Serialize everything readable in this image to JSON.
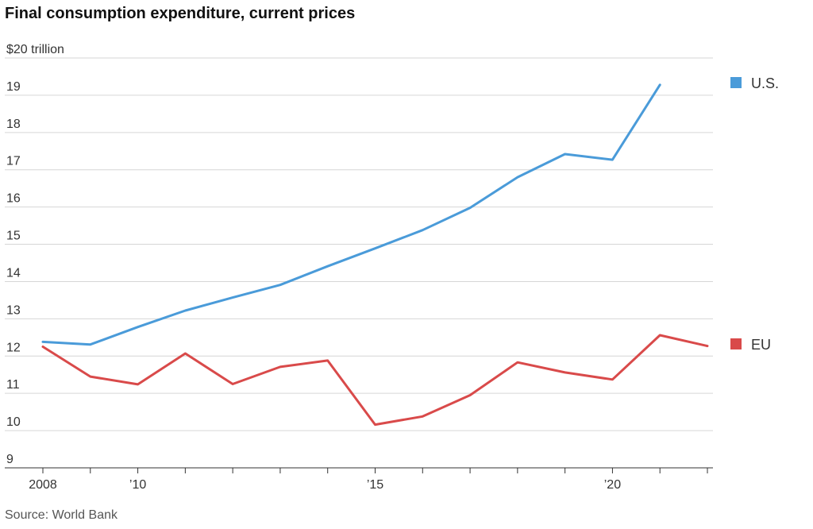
{
  "chart_data": {
    "type": "line",
    "title": "Final consumption expenditure, current prices",
    "source": "Source: World Bank",
    "ylabel": "",
    "xlabel": "",
    "ylim": [
      9,
      20
    ],
    "xlim": [
      2008,
      2022
    ],
    "y_ticks": [
      {
        "value": 20,
        "label": "$20 trillion"
      },
      {
        "value": 19,
        "label": "19"
      },
      {
        "value": 18,
        "label": "18"
      },
      {
        "value": 17,
        "label": "17"
      },
      {
        "value": 16,
        "label": "16"
      },
      {
        "value": 15,
        "label": "15"
      },
      {
        "value": 14,
        "label": "14"
      },
      {
        "value": 13,
        "label": "13"
      },
      {
        "value": 12,
        "label": "12"
      },
      {
        "value": 11,
        "label": "11"
      },
      {
        "value": 10,
        "label": "10"
      },
      {
        "value": 9,
        "label": "9"
      }
    ],
    "x_ticks": [
      {
        "value": 2008,
        "label": "2008"
      },
      {
        "value": 2009,
        "label": ""
      },
      {
        "value": 2010,
        "label": "’10"
      },
      {
        "value": 2011,
        "label": ""
      },
      {
        "value": 2012,
        "label": ""
      },
      {
        "value": 2013,
        "label": ""
      },
      {
        "value": 2014,
        "label": ""
      },
      {
        "value": 2015,
        "label": "’15"
      },
      {
        "value": 2016,
        "label": ""
      },
      {
        "value": 2017,
        "label": ""
      },
      {
        "value": 2018,
        "label": ""
      },
      {
        "value": 2019,
        "label": ""
      },
      {
        "value": 2020,
        "label": "’20"
      },
      {
        "value": 2021,
        "label": ""
      },
      {
        "value": 2022,
        "label": ""
      }
    ],
    "grid": true,
    "legend": "right",
    "series": [
      {
        "name": "U.S.",
        "color": "#4a9bd9",
        "x": [
          2008,
          2009,
          2010,
          2011,
          2012,
          2013,
          2014,
          2015,
          2016,
          2017,
          2018,
          2019,
          2020,
          2021
        ],
        "values": [
          12.38,
          12.31,
          12.78,
          13.22,
          13.57,
          13.91,
          14.41,
          14.89,
          15.38,
          15.98,
          16.8,
          17.42,
          17.27,
          19.28
        ]
      },
      {
        "name": "EU",
        "color": "#d94a4a",
        "x": [
          2008,
          2009,
          2010,
          2011,
          2012,
          2013,
          2014,
          2015,
          2016,
          2017,
          2018,
          2019,
          2020,
          2021,
          2022
        ],
        "values": [
          12.25,
          11.45,
          11.24,
          12.07,
          11.25,
          11.71,
          11.88,
          10.16,
          10.38,
          10.95,
          11.83,
          11.56,
          11.37,
          12.56,
          12.27
        ]
      }
    ]
  }
}
